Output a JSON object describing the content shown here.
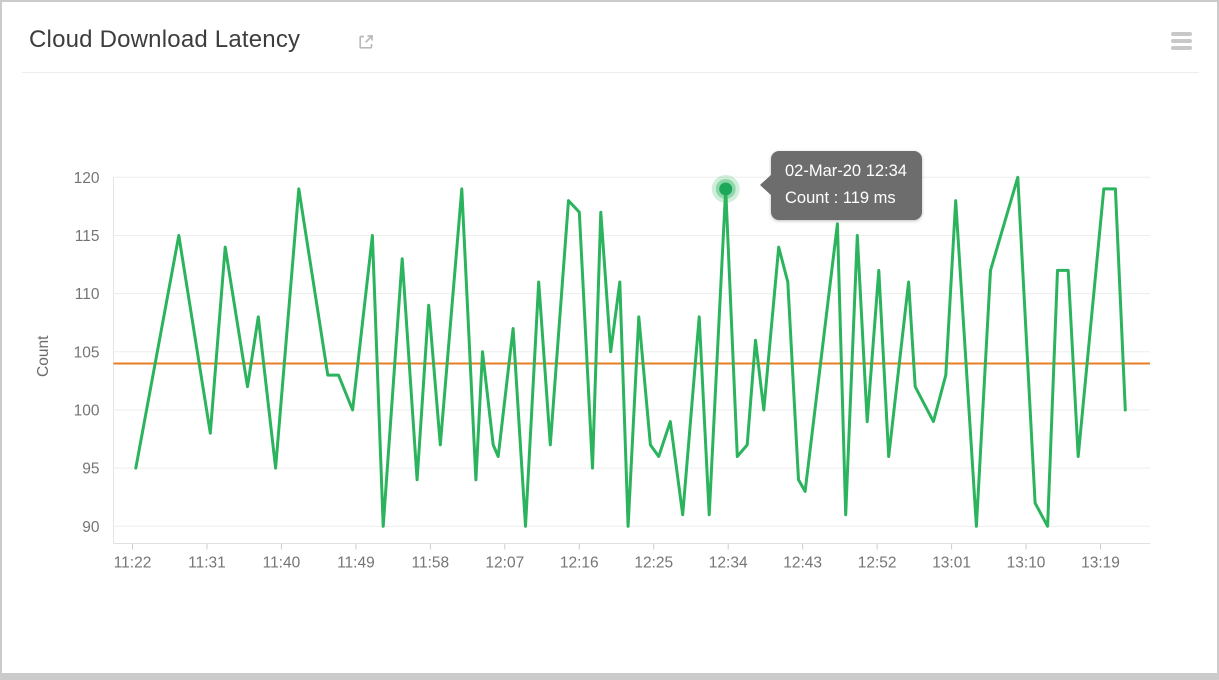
{
  "window": {
    "background_color": "#cbcbcb",
    "card_background_color": "#ffffff"
  },
  "header": {
    "title": "Cloud Download Latency",
    "external_link_icon": "open-in-new-window",
    "menu_icon": "hamburger-menu"
  },
  "chart_data": {
    "type": "line",
    "title": "Cloud Download Latency",
    "xlabel": "",
    "ylabel": "Count",
    "unit": "ms",
    "grid": true,
    "x_axis": {
      "start_label": "11:22",
      "tick_interval_minutes": 9,
      "tick_labels": [
        "11:22",
        "11:31",
        "11:40",
        "11:49",
        "11:58",
        "12:07",
        "12:16",
        "12:25",
        "12:34",
        "12:43",
        "12:52",
        "13:01",
        "13:10",
        "13:19"
      ]
    },
    "y_axis": {
      "ticks": [
        90,
        95,
        100,
        105,
        110,
        115,
        120
      ],
      "range": [
        88.5,
        121
      ]
    },
    "threshold": {
      "value": 104,
      "color": "#e87e23"
    },
    "series": [
      {
        "name": "Count",
        "color": "#2bb45d",
        "points_t_v": [
          [
            0.4,
            95
          ],
          [
            5.6,
            115
          ],
          [
            9.4,
            98
          ],
          [
            11.2,
            114
          ],
          [
            13.9,
            102
          ],
          [
            15.2,
            108
          ],
          [
            17.3,
            95
          ],
          [
            20.1,
            119
          ],
          [
            23.6,
            103
          ],
          [
            24.9,
            103
          ],
          [
            26.6,
            100
          ],
          [
            29,
            115
          ],
          [
            30.3,
            90
          ],
          [
            32.6,
            113
          ],
          [
            34.4,
            94
          ],
          [
            35.8,
            109
          ],
          [
            37.2,
            97
          ],
          [
            39.8,
            119
          ],
          [
            41.5,
            94
          ],
          [
            42.3,
            105
          ],
          [
            43.6,
            97
          ],
          [
            44.2,
            96
          ],
          [
            46,
            107
          ],
          [
            47.5,
            90
          ],
          [
            49.1,
            111
          ],
          [
            50.5,
            97
          ],
          [
            52.7,
            118
          ],
          [
            54,
            117
          ],
          [
            55.6,
            95
          ],
          [
            56.6,
            117
          ],
          [
            57.8,
            105
          ],
          [
            58.9,
            111
          ],
          [
            59.9,
            90
          ],
          [
            61.2,
            108
          ],
          [
            62.6,
            97
          ],
          [
            63.6,
            96
          ],
          [
            65,
            99
          ],
          [
            66.5,
            91
          ],
          [
            68.5,
            108
          ],
          [
            69.7,
            91
          ],
          [
            71.7,
            119
          ],
          [
            73.1,
            96
          ],
          [
            74.3,
            97
          ],
          [
            75.3,
            106
          ],
          [
            76.3,
            100
          ],
          [
            78.1,
            114
          ],
          [
            79.2,
            111
          ],
          [
            80.5,
            94
          ],
          [
            81.3,
            93
          ],
          [
            85.2,
            116
          ],
          [
            86.2,
            91
          ],
          [
            87.6,
            115
          ],
          [
            88.8,
            99
          ],
          [
            90.2,
            112
          ],
          [
            91.4,
            96
          ],
          [
            93.8,
            111
          ],
          [
            94.6,
            102
          ],
          [
            96.8,
            99
          ],
          [
            98.3,
            103
          ],
          [
            99.5,
            118
          ],
          [
            102,
            90
          ],
          [
            103.7,
            112
          ],
          [
            107,
            120
          ],
          [
            109.1,
            92
          ],
          [
            110.6,
            90
          ],
          [
            111.8,
            112
          ],
          [
            113.1,
            112
          ],
          [
            114.3,
            96
          ],
          [
            117.4,
            119
          ],
          [
            118.8,
            119
          ],
          [
            120,
            100
          ]
        ]
      }
    ],
    "highlight": {
      "point_index": 40,
      "t_minutes": 71.7,
      "date": "02-Mar-20",
      "time": "12:34",
      "value": 119,
      "tooltip": {
        "line1": "02-Mar-20 12:34",
        "line2": "Count : 119 ms"
      }
    },
    "legend_position": "none"
  }
}
